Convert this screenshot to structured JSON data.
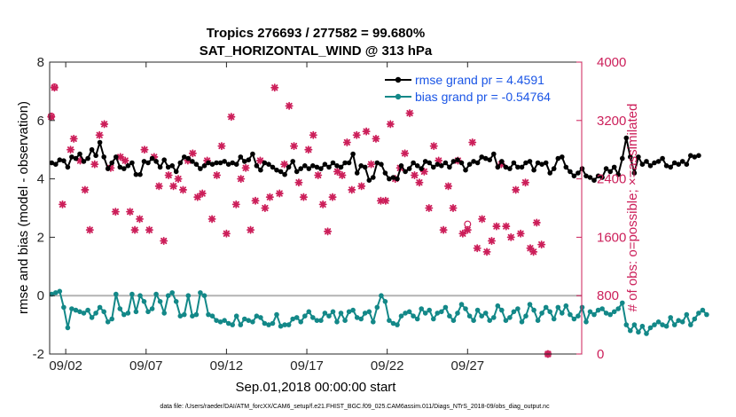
{
  "chart_data": {
    "type": "line",
    "title_line1": "Tropics 276693 / 277582 = 99.680%",
    "title_line2": "SAT_HORIZONTAL_WIND @ 313 hPa",
    "ylabel_left": "rmse and bias (model - observation)",
    "ylabel_right": "# of obs: o=possible; ×=assimilated",
    "xlabel": "Sep.01,2018 00:00:00 start",
    "footer": "data file: /Users/raeder/DAI/ATM_forcXX/CAM6_setup/f.e21.FHIST_BGC.f09_025.CAM6assim.011/Diags_NTrS_2018-09/obs_diag_output.nc",
    "xlim": [
      1,
      34.1
    ],
    "ylim_left": [
      -2,
      8
    ],
    "ylim_right": [
      0,
      4000
    ],
    "left_ticks": [
      "-2",
      "0",
      "2",
      "4",
      "6",
      "8"
    ],
    "left_tick_values": [
      -2,
      0,
      2,
      4,
      6,
      8
    ],
    "right_ticks": [
      "0",
      "800",
      "1600",
      "2400",
      "3200",
      "4000"
    ],
    "right_tick_values": [
      0,
      800,
      1600,
      2400,
      3200,
      4000
    ],
    "x_ticks": [
      "09/02",
      "09/07",
      "09/12",
      "09/17",
      "09/22",
      "09/27"
    ],
    "x_tick_values": [
      2,
      7,
      12,
      17,
      22,
      27
    ],
    "colors": {
      "rmse": "#000000",
      "bias": "#138888",
      "obs": "#cc1f5a",
      "zero_line": "#b3b3b3",
      "right_axis": "#cc1f5a",
      "legend_text": "#1a55e6"
    },
    "series": [
      {
        "name": "rmse grand pr = 4.4591",
        "start_day": 1.125,
        "step_day": 0.25,
        "values": [
          4.55,
          4.5,
          4.65,
          4.62,
          4.4,
          4.75,
          4.7,
          4.85,
          4.6,
          4.7,
          5.0,
          4.8,
          5.25,
          4.75,
          4.35,
          4.55,
          4.75,
          4.4,
          4.35,
          4.45,
          4.55,
          4.15,
          4.15,
          4.6,
          4.55,
          4.7,
          4.6,
          4.4,
          4.65,
          4.4,
          4.45,
          4.25,
          4.55,
          4.75,
          4.7,
          4.6,
          4.5,
          4.35,
          4.45,
          4.55,
          4.5,
          4.55,
          4.55,
          4.6,
          4.5,
          4.55,
          4.5,
          4.75,
          4.6,
          4.65,
          4.85,
          4.45,
          4.3,
          4.55,
          4.5,
          4.4,
          4.3,
          4.25,
          4.15,
          4.4,
          4.6,
          4.25,
          4.35,
          4.45,
          4.35,
          4.45,
          4.4,
          4.35,
          4.5,
          4.4,
          4.55,
          4.45,
          4.4,
          4.55,
          4.55,
          4.85,
          4.2,
          4.45,
          4.4,
          3.95,
          4.05,
          4.55,
          4.5,
          4.2,
          4.0,
          4.05,
          4.0,
          4.45,
          4.25,
          4.35,
          4.55,
          4.45,
          4.35,
          4.6,
          4.55,
          4.4,
          4.5,
          4.45,
          4.55,
          4.4,
          4.6,
          4.65,
          4.55,
          4.3,
          4.5,
          4.6,
          4.55,
          4.75,
          4.7,
          4.65,
          4.85,
          4.4,
          4.6,
          4.4,
          4.35,
          4.55,
          4.4,
          4.4,
          4.55,
          4.6,
          4.3,
          4.55,
          4.5,
          4.55,
          4.2,
          4.35,
          4.7,
          4.75,
          4.4,
          4.25,
          4.1,
          4.2,
          4.35,
          4.1,
          4.05,
          3.95,
          4.1,
          4.05,
          4.35,
          4.25,
          4.4,
          4.15,
          4.7,
          5.4,
          4.75,
          4.2,
          4.75,
          4.5,
          4.6,
          4.45,
          4.55,
          4.6,
          4.7,
          4.45,
          4.4,
          4.55,
          4.5,
          4.6,
          4.5,
          4.8,
          4.75,
          4.8
        ]
      },
      {
        "name": "bias grand pr = -0.54764",
        "start_day": 1.125,
        "step_day": 0.25,
        "values": [
          0.05,
          0.1,
          0.15,
          -0.4,
          -1.1,
          -0.45,
          -0.5,
          -0.55,
          -0.6,
          -0.5,
          -0.75,
          -0.6,
          -0.4,
          -0.55,
          -0.9,
          -0.8,
          0.05,
          -0.45,
          -0.65,
          -0.6,
          0.05,
          -0.55,
          0.0,
          -0.2,
          -0.55,
          -0.45,
          0.05,
          -0.2,
          -0.6,
          0.0,
          0.1,
          -0.2,
          -0.7,
          -0.65,
          0.0,
          -0.7,
          -0.65,
          0.1,
          0.0,
          -0.65,
          -0.7,
          -0.85,
          -0.9,
          -0.85,
          -0.95,
          -1.0,
          -0.7,
          -1.0,
          -0.8,
          -0.85,
          -0.9,
          -0.7,
          -0.75,
          -0.95,
          -1.0,
          -0.95,
          -0.65,
          -1.05,
          -1.0,
          -1.0,
          -0.8,
          -0.75,
          -0.9,
          -0.7,
          -0.55,
          -0.75,
          -0.85,
          -0.85,
          -0.6,
          -0.7,
          -0.55,
          -0.9,
          -0.6,
          -0.85,
          -0.55,
          -0.5,
          -0.75,
          -0.8,
          -0.6,
          -0.55,
          -0.9,
          -0.4,
          0.0,
          -0.2,
          -0.85,
          -0.95,
          -1.0,
          -0.7,
          -0.6,
          -0.55,
          -0.7,
          -0.8,
          -0.45,
          -0.6,
          -0.5,
          -0.8,
          -0.6,
          -0.55,
          -0.4,
          -0.7,
          -0.85,
          -0.6,
          -0.3,
          -0.45,
          -0.7,
          -0.85,
          -0.5,
          -0.7,
          -0.6,
          -0.85,
          -0.75,
          -0.35,
          -0.5,
          -0.85,
          -0.75,
          -0.55,
          -0.45,
          -0.9,
          -0.7,
          -0.3,
          -0.5,
          -0.85,
          -0.6,
          -0.4,
          -0.55,
          -0.8,
          -0.4,
          -0.6,
          -0.35,
          -0.65,
          -0.8,
          -0.7,
          -0.4,
          -0.9,
          -0.55,
          -0.65,
          -0.5,
          -0.45,
          -0.6,
          -0.65,
          -0.55,
          -0.45,
          -0.25,
          -1.0,
          -1.2,
          -1.0,
          -1.25,
          -1.05,
          -1.3,
          -1.1,
          -1.0,
          -0.9,
          -1.0,
          -1.05,
          -0.75,
          -1.0,
          -0.85,
          -0.9,
          -0.65,
          -1.0,
          -0.8,
          -0.6,
          -0.5,
          -0.65
        ]
      }
    ],
    "obs_assimilated": [
      [
        1.1,
        3250
      ],
      [
        1.3,
        3650
      ],
      [
        1.8,
        2050
      ],
      [
        2.3,
        2800
      ],
      [
        2.5,
        2950
      ],
      [
        2.9,
        2650
      ],
      [
        3.2,
        2250
      ],
      [
        3.5,
        1700
      ],
      [
        3.8,
        2600
      ],
      [
        4.1,
        3000
      ],
      [
        4.4,
        3150
      ],
      [
        4.8,
        2550
      ],
      [
        5.1,
        1950
      ],
      [
        5.4,
        2700
      ],
      [
        5.7,
        2650
      ],
      [
        6.0,
        1950
      ],
      [
        6.3,
        1700
      ],
      [
        6.6,
        1850
      ],
      [
        6.9,
        2800
      ],
      [
        7.2,
        1700
      ],
      [
        7.5,
        2700
      ],
      [
        7.8,
        2300
      ],
      [
        8.1,
        1550
      ],
      [
        8.4,
        2450
      ],
      [
        8.7,
        2300
      ],
      [
        9.0,
        2400
      ],
      [
        9.3,
        2250
      ],
      [
        9.6,
        2650
      ],
      [
        9.9,
        2750
      ],
      [
        10.2,
        2150
      ],
      [
        10.5,
        2200
      ],
      [
        10.8,
        2650
      ],
      [
        11.1,
        1850
      ],
      [
        11.4,
        2450
      ],
      [
        11.7,
        2850
      ],
      [
        12.0,
        1650
      ],
      [
        12.3,
        3250
      ],
      [
        12.6,
        2050
      ],
      [
        12.9,
        2400
      ],
      [
        13.2,
        2550
      ],
      [
        13.5,
        1700
      ],
      [
        13.8,
        2100
      ],
      [
        14.1,
        2650
      ],
      [
        14.4,
        2000
      ],
      [
        14.7,
        2150
      ],
      [
        15.0,
        3650
      ],
      [
        15.3,
        2200
      ],
      [
        15.6,
        2600
      ],
      [
        15.9,
        3400
      ],
      [
        16.2,
        2850
      ],
      [
        16.5,
        2350
      ],
      [
        16.8,
        2150
      ],
      [
        17.1,
        2800
      ],
      [
        17.4,
        3000
      ],
      [
        17.7,
        2450
      ],
      [
        18.0,
        2050
      ],
      [
        18.3,
        1680
      ],
      [
        18.6,
        2150
      ],
      [
        18.9,
        2500
      ],
      [
        19.2,
        2450
      ],
      [
        19.5,
        2900
      ],
      [
        19.8,
        2250
      ],
      [
        20.1,
        3000
      ],
      [
        20.4,
        2300
      ],
      [
        20.7,
        3050
      ],
      [
        21.0,
        2600
      ],
      [
        21.3,
        2950
      ],
      [
        21.6,
        2100
      ],
      [
        21.9,
        2100
      ],
      [
        22.2,
        3150
      ],
      [
        22.5,
        2400
      ],
      [
        22.8,
        2550
      ],
      [
        23.1,
        2750
      ],
      [
        23.4,
        3300
      ],
      [
        23.7,
        2450
      ],
      [
        24.0,
        2350
      ],
      [
        24.3,
        2500
      ],
      [
        24.6,
        2000
      ],
      [
        24.9,
        2850
      ],
      [
        25.2,
        2650
      ],
      [
        25.5,
        1700
      ],
      [
        25.8,
        2300
      ],
      [
        26.1,
        2000
      ],
      [
        26.4,
        2650
      ],
      [
        26.7,
        1650
      ],
      [
        27.0,
        1700
      ],
      [
        27.3,
        2900
      ],
      [
        27.6,
        1450
      ],
      [
        27.9,
        1850
      ],
      [
        28.2,
        1400
      ],
      [
        28.5,
        1550
      ],
      [
        28.8,
        1750
      ],
      [
        29.1,
        2600
      ],
      [
        29.4,
        1750
      ],
      [
        29.7,
        1600
      ],
      [
        30.0,
        2250
      ],
      [
        30.3,
        1650
      ],
      [
        30.6,
        2350
      ],
      [
        30.9,
        1450
      ],
      [
        31.1,
        1400
      ],
      [
        31.3,
        1800
      ],
      [
        31.6,
        1500
      ],
      [
        32.0,
        0
      ]
    ],
    "obs_possible": [
      [
        1.1,
        3260
      ],
      [
        1.3,
        3660
      ],
      [
        27.0,
        1780
      ],
      [
        32.0,
        0
      ]
    ]
  }
}
